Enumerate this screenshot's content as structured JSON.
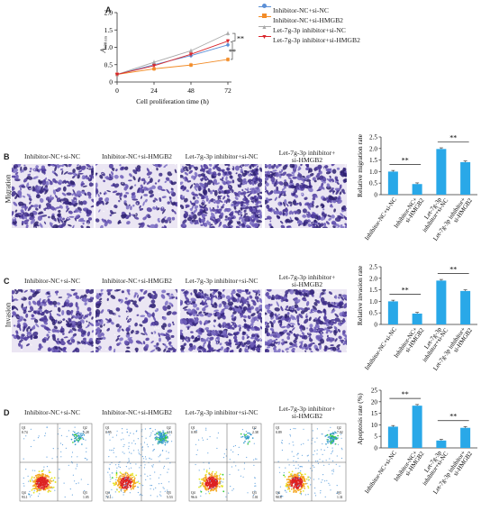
{
  "panelA": {
    "letter": "A",
    "ylabel": "A",
    "ylabel_sub": "490 nm",
    "xlabel": "Cell proliferation time (h)",
    "yticks": [
      "0",
      "0.5",
      "1.0",
      "1.5",
      "2.0"
    ],
    "xticks": [
      "0",
      "24",
      "48",
      "72"
    ],
    "sig1": "**",
    "sig2": "**",
    "legend": [
      "Inhibitor-NC+si-NC",
      "Inhibitor-NC+si-HMGB2",
      "Let-7g-3p inhibitor+si-NC",
      "Let-7g-3p inhibitor+si-HMGB2"
    ],
    "colors": [
      "#5b8fd6",
      "#f28c28",
      "#a9a9a9",
      "#d9262c"
    ]
  },
  "chart_data": [
    {
      "type": "line",
      "xlabel": "Cell proliferation time (h)",
      "ylabel": "A490 nm",
      "ylim": [
        0,
        2.0
      ],
      "x": [
        0,
        24,
        48,
        72
      ],
      "series": [
        {
          "name": "Inhibitor-NC+si-NC",
          "values": [
            0.22,
            0.5,
            0.76,
            1.07
          ]
        },
        {
          "name": "Inhibitor-NC+si-HMGB2",
          "values": [
            0.22,
            0.38,
            0.49,
            0.65
          ]
        },
        {
          "name": "Let-7g-3p inhibitor+si-NC",
          "values": [
            0.22,
            0.57,
            0.9,
            1.4
          ]
        },
        {
          "name": "Let-7g-3p inhibitor+si-HMGB2",
          "values": [
            0.22,
            0.47,
            0.8,
            1.18
          ]
        }
      ]
    },
    {
      "type": "bar",
      "ylabel": "Relative migration rate",
      "ylim": [
        0,
        2.5
      ],
      "categories": [
        "Inhibitor-NC+si-NC",
        "Inhibitor-NC+si-HMGB2",
        "Let-7g-3p inhibitor+si-NC",
        "Let-7g-3p inhibitor+si-HMGB2"
      ],
      "values": [
        1.0,
        0.46,
        1.98,
        1.41
      ]
    },
    {
      "type": "bar",
      "ylabel": "Relative invasion rate",
      "ylim": [
        0,
        2.5
      ],
      "categories": [
        "Inhibitor-NC+si-NC",
        "Inhibitor-NC+si-HMGB2",
        "Let-7g-3p inhibitor+si-NC",
        "Let-7g-3p inhibitor+si-HMGB2"
      ],
      "values": [
        1.0,
        0.47,
        1.9,
        1.45
      ]
    },
    {
      "type": "bar",
      "ylabel": "Apoptosis rate (%)",
      "ylim": [
        0,
        25
      ],
      "categories": [
        "Inhibitor-NC+si-NC",
        "Inhibitor-NC+si-HMGB2",
        "Let-7g-3p inhibitor+si-NC",
        "Let-7g-3p inhibitor+si-HMGB2"
      ],
      "values": [
        9.2,
        18.3,
        3.2,
        8.7
      ]
    }
  ],
  "panelB": {
    "letter": "B",
    "side": "Migration",
    "captions": [
      "Inhibitor-NC+si-NC",
      "Inhibitor-NC+si-HMGB2",
      "Let-7g-3p inhibitor+si-NC",
      "Let-7g-3p inhibitor+"
    ],
    "caption4b": "si-HMGB2",
    "ylabel": "Relative migration rate",
    "yticks": [
      "0",
      "0.5",
      "1.0",
      "1.5",
      "2.0",
      "2.5"
    ],
    "sig": "**"
  },
  "panelC": {
    "letter": "C",
    "side": "Invasion",
    "captions": [
      "Inhibitor-NC+si-NC",
      "Inhibitor-NC+si-HMGB2",
      "Let-7g-3p inhibitor+si-NC",
      "Let-7g-3p inhibitor+"
    ],
    "caption4b": "si-HMGB2",
    "ylabel": "Relative invasion rate",
    "yticks": [
      "0",
      "0.5",
      "1.0",
      "1.5",
      "2.0",
      "2.5"
    ],
    "sig": "**"
  },
  "panelD": {
    "letter": "D",
    "captions": [
      "Inhibitor-NC+si-NC",
      "Inhibitor-NC+si-HMGB2",
      "Let-7g-3p inhibitor+si-NC",
      "Let-7g-3p inhibitor+"
    ],
    "caption4b": "si-HMGB2",
    "ylabel": "Apoptosis rate (%)",
    "yticks": [
      "0",
      "5",
      "10",
      "15",
      "20",
      "25"
    ],
    "sig": "**",
    "quadrants": [
      {
        "q1": "Q1",
        "v1": "0.74",
        "q2": "Q2",
        "v2": "5.28",
        "q4": "Q4",
        "v4": "93.1",
        "q3": "Q3",
        "v3": "1.05"
      },
      {
        "q1": "Q1",
        "v1": "0.95",
        "q2": "Q2",
        "v2": "12.1",
        "q4": "Q4",
        "v4": "72.1",
        "q3": "Q3",
        "v3": "5.53"
      },
      {
        "q1": "Q1",
        "v1": "0.99",
        "q2": "Q2",
        "v2": "2.38",
        "q4": "Q4",
        "v4": "96.6",
        "q3": "Q3",
        "v3": "1.01"
      },
      {
        "q1": "Q1",
        "v1": "0.89",
        "q2": "Q2",
        "v2": "7.02",
        "q4": "Q4",
        "v4": "90.8",
        "q3": "Q3",
        "v3": "1.31"
      }
    ]
  },
  "bar_labels": [
    "Inhibitor-NC+si-NC",
    "Inhibitor-NC+",
    "si-HMGB2",
    "Let-7g-3p",
    "inhibitor+si-NC",
    "Let-7g-3p inhibitor+",
    "si-HMGB2"
  ]
}
